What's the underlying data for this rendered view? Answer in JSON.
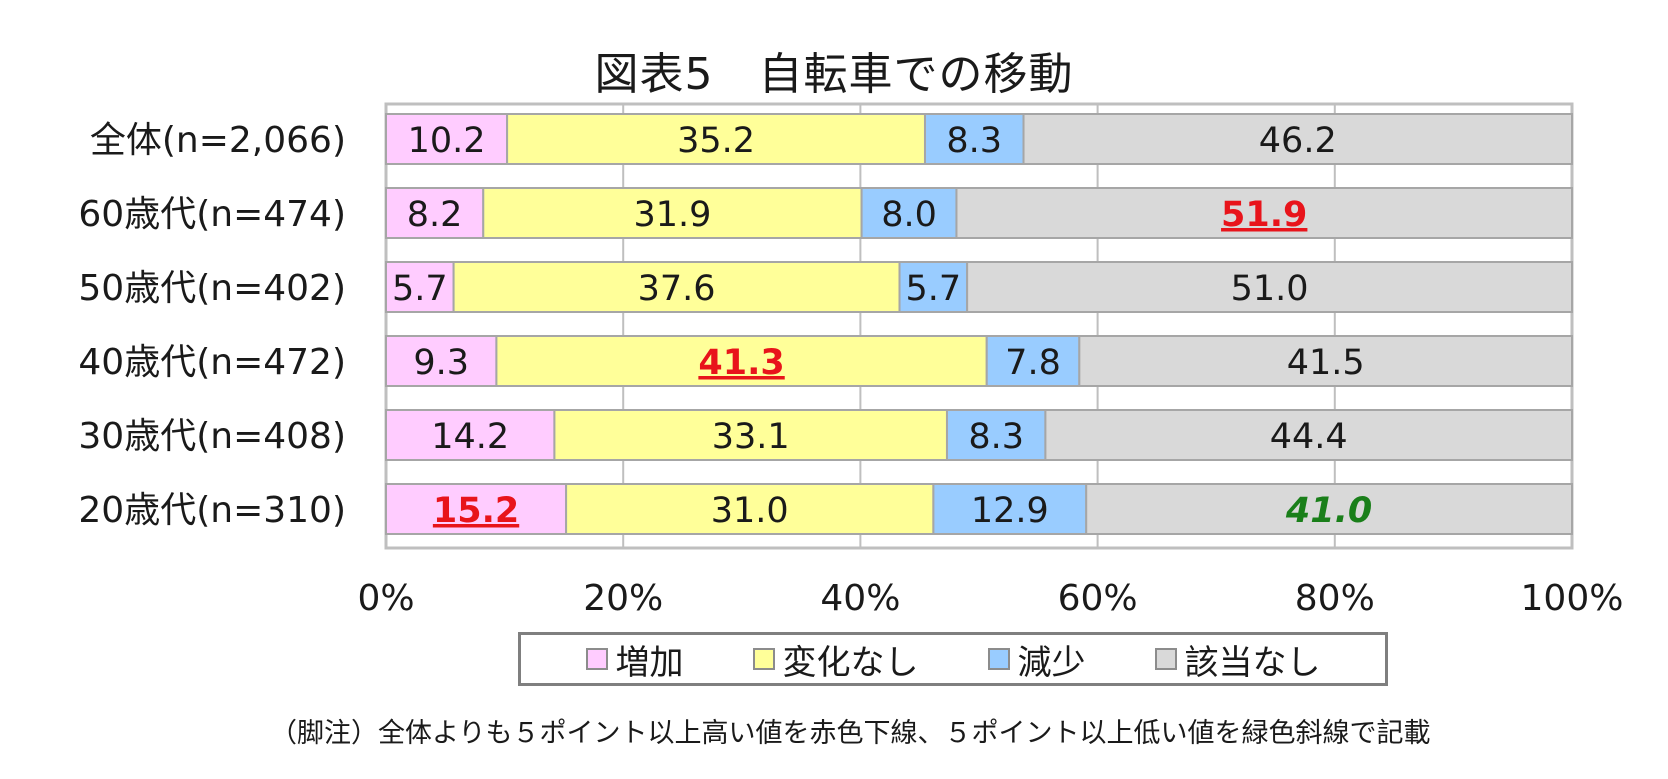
{
  "title": "図表5　自転車での移動",
  "footnote": "（脚注）全体よりも５ポイント以上高い値を赤色下線、５ポイント以上低い値を緑色斜線で記載",
  "legend": [
    {
      "label": "増加",
      "color": "#ffccff"
    },
    {
      "label": "変化なし",
      "color": "#ffff99"
    },
    {
      "label": "減少",
      "color": "#99ccff"
    },
    {
      "label": "該当なし",
      "color": "#d9d9d9"
    }
  ],
  "chart_data": {
    "type": "bar",
    "orientation": "horizontal",
    "stacked": true,
    "title": "図表5　自転車での移動",
    "categories": [
      "全体(n=2,066)",
      "60歳代(n=474)",
      "50歳代(n=402)",
      "40歳代(n=472)",
      "30歳代(n=408)",
      "20歳代(n=310)"
    ],
    "series": [
      {
        "name": "増加",
        "color": "#ffccff",
        "values": [
          10.2,
          8.2,
          5.7,
          9.3,
          14.2,
          15.2
        ]
      },
      {
        "name": "変化なし",
        "color": "#ffff99",
        "values": [
          35.2,
          31.9,
          37.6,
          41.3,
          33.1,
          31.0
        ]
      },
      {
        "name": "減少",
        "color": "#99ccff",
        "values": [
          8.3,
          8.0,
          5.7,
          7.8,
          8.3,
          12.9
        ]
      },
      {
        "name": "該当なし",
        "color": "#d9d9d9",
        "values": [
          46.2,
          51.9,
          51.0,
          41.5,
          44.4,
          41.0
        ]
      }
    ],
    "labels": [
      [
        "10.2",
        "35.2",
        "8.3",
        "46.2"
      ],
      [
        "8.2",
        "31.9",
        "8.0",
        "51.9"
      ],
      [
        "5.7",
        "37.6",
        "5.7",
        "51.0"
      ],
      [
        "9.3",
        "41.3",
        "7.8",
        "41.5"
      ],
      [
        "14.2",
        "33.1",
        "8.3",
        "44.4"
      ],
      [
        "15.2",
        "31.0",
        "12.9",
        "41.0"
      ]
    ],
    "highlights": {
      "high": [
        [
          1,
          3
        ],
        [
          3,
          1
        ],
        [
          5,
          0
        ]
      ],
      "low": [
        [
          5,
          3
        ]
      ]
    },
    "highlight_colors": {
      "high": "#e8141b",
      "low": "#1a7f1a"
    },
    "xaxis": {
      "ticks": [
        "0%",
        "20%",
        "40%",
        "60%",
        "80%",
        "100%"
      ],
      "range": [
        0,
        100
      ]
    },
    "grid": true,
    "legend_position": "bottom"
  }
}
